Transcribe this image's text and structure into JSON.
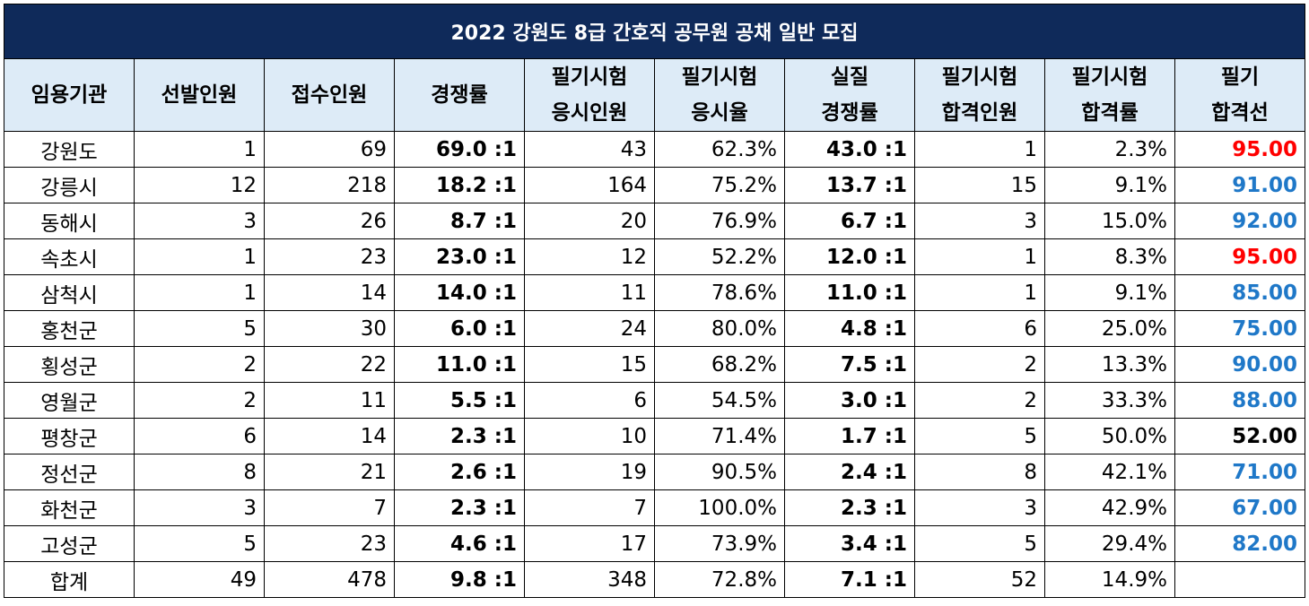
{
  "title": "2022 강원도 8급 간호직 공무원 공채 일반 모집",
  "headers": [
    [
      "임용기관"
    ],
    [
      "선발인원"
    ],
    [
      "접수인원"
    ],
    [
      "경쟁률"
    ],
    [
      "필기시험",
      "응시인원"
    ],
    [
      "필기시험",
      "응시율"
    ],
    [
      "실질",
      "경쟁률"
    ],
    [
      "필기시험",
      "합격인원"
    ],
    [
      "필기시험",
      "합격률"
    ],
    [
      "필기",
      "합격선"
    ]
  ],
  "colors": {
    "title_bg": "#0f2a5a",
    "header_bg": "#ddebf7",
    "red": "#ff0000",
    "blue": "#1f78c8",
    "black": "#000000"
  },
  "rows": [
    {
      "name": "강원도",
      "sel": "1",
      "app": "69",
      "ratio": "69.0 :1",
      "took": "43",
      "took_rate": "62.3%",
      "real": "43.0 :1",
      "pass": "1",
      "pass_rate": "2.3%",
      "cut": "95.00",
      "cut_color": "red"
    },
    {
      "name": "강릉시",
      "sel": "12",
      "app": "218",
      "ratio": "18.2 :1",
      "took": "164",
      "took_rate": "75.2%",
      "real": "13.7 :1",
      "pass": "15",
      "pass_rate": "9.1%",
      "cut": "91.00",
      "cut_color": "blue"
    },
    {
      "name": "동해시",
      "sel": "3",
      "app": "26",
      "ratio": "8.7 :1",
      "took": "20",
      "took_rate": "76.9%",
      "real": "6.7 :1",
      "pass": "3",
      "pass_rate": "15.0%",
      "cut": "92.00",
      "cut_color": "blue"
    },
    {
      "name": "속초시",
      "sel": "1",
      "app": "23",
      "ratio": "23.0 :1",
      "took": "12",
      "took_rate": "52.2%",
      "real": "12.0 :1",
      "pass": "1",
      "pass_rate": "8.3%",
      "cut": "95.00",
      "cut_color": "red"
    },
    {
      "name": "삼척시",
      "sel": "1",
      "app": "14",
      "ratio": "14.0 :1",
      "took": "11",
      "took_rate": "78.6%",
      "real": "11.0 :1",
      "pass": "1",
      "pass_rate": "9.1%",
      "cut": "85.00",
      "cut_color": "blue"
    },
    {
      "name": "홍천군",
      "sel": "5",
      "app": "30",
      "ratio": "6.0 :1",
      "took": "24",
      "took_rate": "80.0%",
      "real": "4.8 :1",
      "pass": "6",
      "pass_rate": "25.0%",
      "cut": "75.00",
      "cut_color": "blue"
    },
    {
      "name": "횡성군",
      "sel": "2",
      "app": "22",
      "ratio": "11.0 :1",
      "took": "15",
      "took_rate": "68.2%",
      "real": "7.5 :1",
      "pass": "2",
      "pass_rate": "13.3%",
      "cut": "90.00",
      "cut_color": "blue"
    },
    {
      "name": "영월군",
      "sel": "2",
      "app": "11",
      "ratio": "5.5 :1",
      "took": "6",
      "took_rate": "54.5%",
      "real": "3.0 :1",
      "pass": "2",
      "pass_rate": "33.3%",
      "cut": "88.00",
      "cut_color": "blue"
    },
    {
      "name": "평창군",
      "sel": "6",
      "app": "14",
      "ratio": "2.3 :1",
      "took": "10",
      "took_rate": "71.4%",
      "real": "1.7 :1",
      "pass": "5",
      "pass_rate": "50.0%",
      "cut": "52.00",
      "cut_color": "black"
    },
    {
      "name": "정선군",
      "sel": "8",
      "app": "21",
      "ratio": "2.6 :1",
      "took": "19",
      "took_rate": "90.5%",
      "real": "2.4 :1",
      "pass": "8",
      "pass_rate": "42.1%",
      "cut": "71.00",
      "cut_color": "blue"
    },
    {
      "name": "화천군",
      "sel": "3",
      "app": "7",
      "ratio": "2.3 :1",
      "took": "7",
      "took_rate": "100.0%",
      "real": "2.3 :1",
      "pass": "3",
      "pass_rate": "42.9%",
      "cut": "67.00",
      "cut_color": "blue"
    },
    {
      "name": "고성군",
      "sel": "5",
      "app": "23",
      "ratio": "4.6 :1",
      "took": "17",
      "took_rate": "73.9%",
      "real": "3.4 :1",
      "pass": "5",
      "pass_rate": "29.4%",
      "cut": "82.00",
      "cut_color": "blue"
    },
    {
      "name": "합계",
      "sel": "49",
      "app": "478",
      "ratio": "9.8 :1",
      "took": "348",
      "took_rate": "72.8%",
      "real": "7.1 :1",
      "pass": "52",
      "pass_rate": "14.9%",
      "cut": "",
      "cut_color": "black"
    }
  ]
}
